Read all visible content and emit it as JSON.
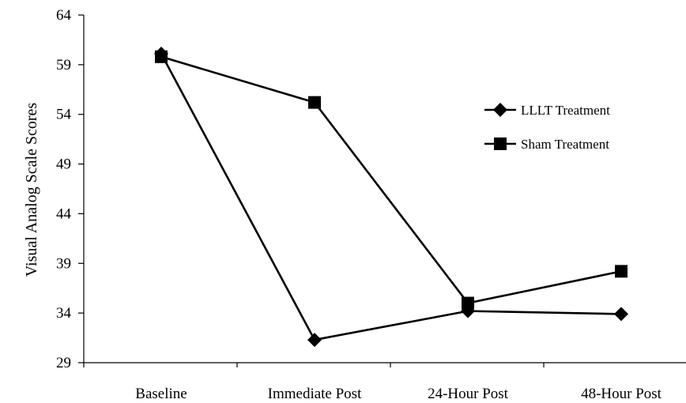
{
  "chart_data": {
    "type": "line",
    "title": "",
    "xlabel": "",
    "ylabel": "Visual Analog Scale Scores",
    "categories": [
      "Baseline",
      "Immediate Post",
      "24-Hour Post",
      "48-Hour Post"
    ],
    "ylim": [
      29,
      64
    ],
    "yticks": [
      "29",
      "34",
      "39",
      "44",
      "49",
      "54",
      "59",
      "64"
    ],
    "grid": false,
    "legend_position": "right",
    "series": [
      {
        "name": "LLLT Treatment",
        "marker": "diamond",
        "color": "#000000",
        "values": [
          60.1,
          31.3,
          34.2,
          33.9
        ]
      },
      {
        "name": "Sham Treatment",
        "marker": "square",
        "color": "#000000",
        "values": [
          59.8,
          55.2,
          35.0,
          38.2
        ]
      }
    ]
  }
}
